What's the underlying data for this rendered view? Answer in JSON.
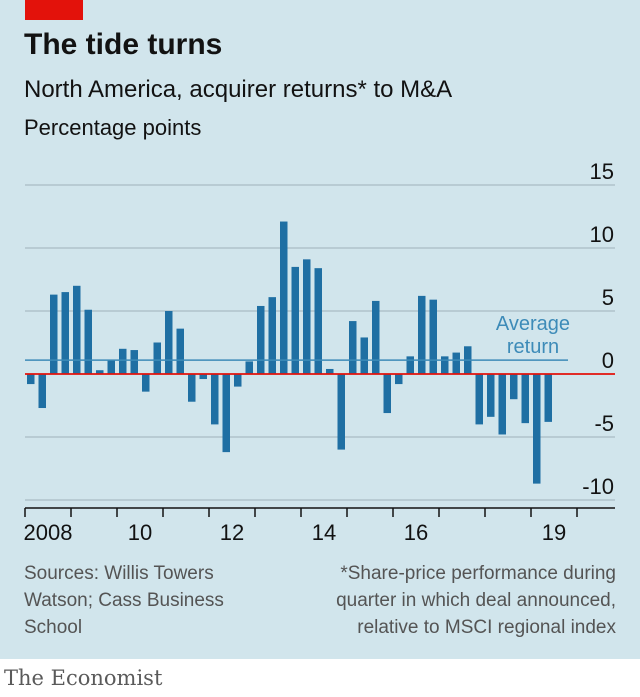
{
  "title": "The tide turns",
  "subtitle": "North America, acquirer returns* to M&A",
  "unit": "Percentage points",
  "sources": "Sources: Willis Towers Watson; Cass Business School",
  "footnote": "*Share-price performance during quarter in which deal announced, relative to MSCI regional index",
  "brand": "The Economist",
  "colors": {
    "panel": "#d1e5ec",
    "bar": "#1f6fa3",
    "zero_line": "#e3120b",
    "average_line": "#3d8bb8",
    "gridline": "#a9bcc4",
    "brand_tag": "#e3120b"
  },
  "chart_data": {
    "type": "bar",
    "y_axis": {
      "min": -10,
      "max": 15,
      "ticks": [
        "15",
        "10",
        "5",
        "0",
        "-5",
        "-10"
      ],
      "tick_values": [
        15,
        10,
        5,
        0,
        -5,
        -10
      ],
      "side": "right"
    },
    "x_axis": {
      "start_year": 2008,
      "end_year": 2019,
      "tick_labels": [
        {
          "label": "2008",
          "year": 2008
        },
        {
          "label": "10",
          "year": 2010
        },
        {
          "label": "12",
          "year": 2012
        },
        {
          "label": "14",
          "year": 2014
        },
        {
          "label": "16",
          "year": 2016
        },
        {
          "label": "19",
          "year": 2019
        }
      ]
    },
    "grid": true,
    "average": {
      "label": [
        "Average",
        "return"
      ],
      "value": 1.1
    },
    "series": [
      {
        "frequency": "quarterly",
        "start": "2008Q1",
        "values": [
          -0.8,
          -2.7,
          6.3,
          6.5,
          7.0,
          5.1,
          0.3,
          1.1,
          2.0,
          1.9,
          -1.4,
          2.5,
          5.0,
          3.6,
          -2.2,
          -0.4,
          -4.0,
          -6.2,
          -1.0,
          1.0,
          5.4,
          6.1,
          12.1,
          8.5,
          9.1,
          8.4,
          0.4,
          -6.0,
          4.2,
          2.9,
          5.8,
          -3.1,
          -0.8,
          1.4,
          6.2,
          5.9,
          1.4,
          1.7,
          2.2,
          -4.0,
          -3.4,
          -4.8,
          -2.0,
          -3.9,
          -8.7,
          -3.8
        ]
      }
    ]
  }
}
